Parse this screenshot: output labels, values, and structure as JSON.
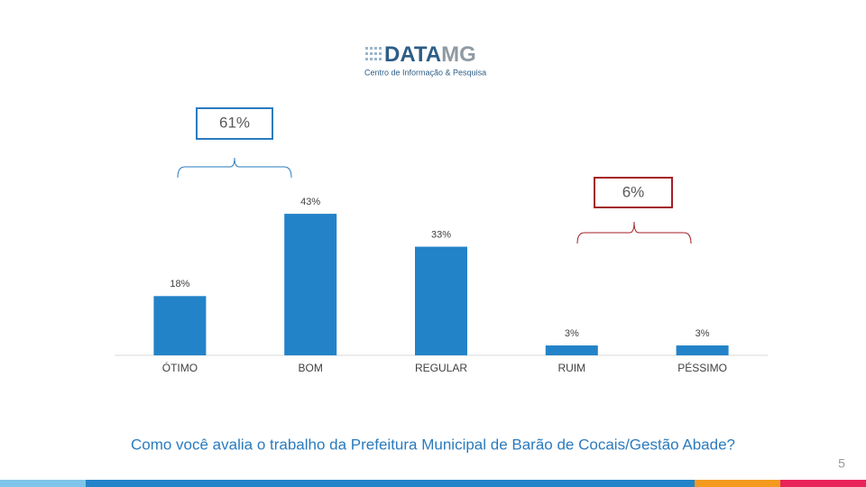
{
  "logo": {
    "brand_part1": "DATA",
    "brand_part2": "MG",
    "tagline": "Centro de Informação & Pesquisa"
  },
  "chart_data": {
    "type": "bar",
    "categories": [
      "ÓTIMO",
      "BOM",
      "REGULAR",
      "RUIM",
      "PÉSSIMO"
    ],
    "values": [
      18,
      43,
      33,
      3,
      3
    ],
    "value_labels": [
      "18%",
      "43%",
      "33%",
      "3%",
      "3%"
    ],
    "color": "#2383c8",
    "annotations": [
      {
        "label": "61%",
        "color": "#2a7bbf"
      },
      {
        "label": "6%",
        "color": "#a31f26"
      }
    ],
    "caption": "Como você avalia o trabalho da Prefeitura Municipal de Barão de Cocais/Gestão Abade?"
  },
  "page_number": "5"
}
